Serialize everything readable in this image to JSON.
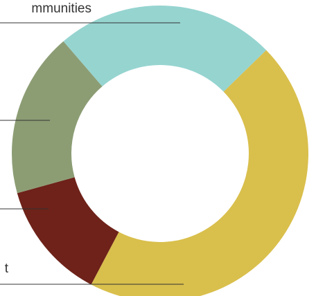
{
  "chart_data": {
    "type": "pie",
    "categories": [
      "mmunities",
      "t",
      null,
      null
    ],
    "values": [
      24,
      45,
      13,
      18
    ],
    "colors": [
      "#96d4d0",
      "#d9bf4c",
      "#6e2219",
      "#8c9d74"
    ]
  }
}
